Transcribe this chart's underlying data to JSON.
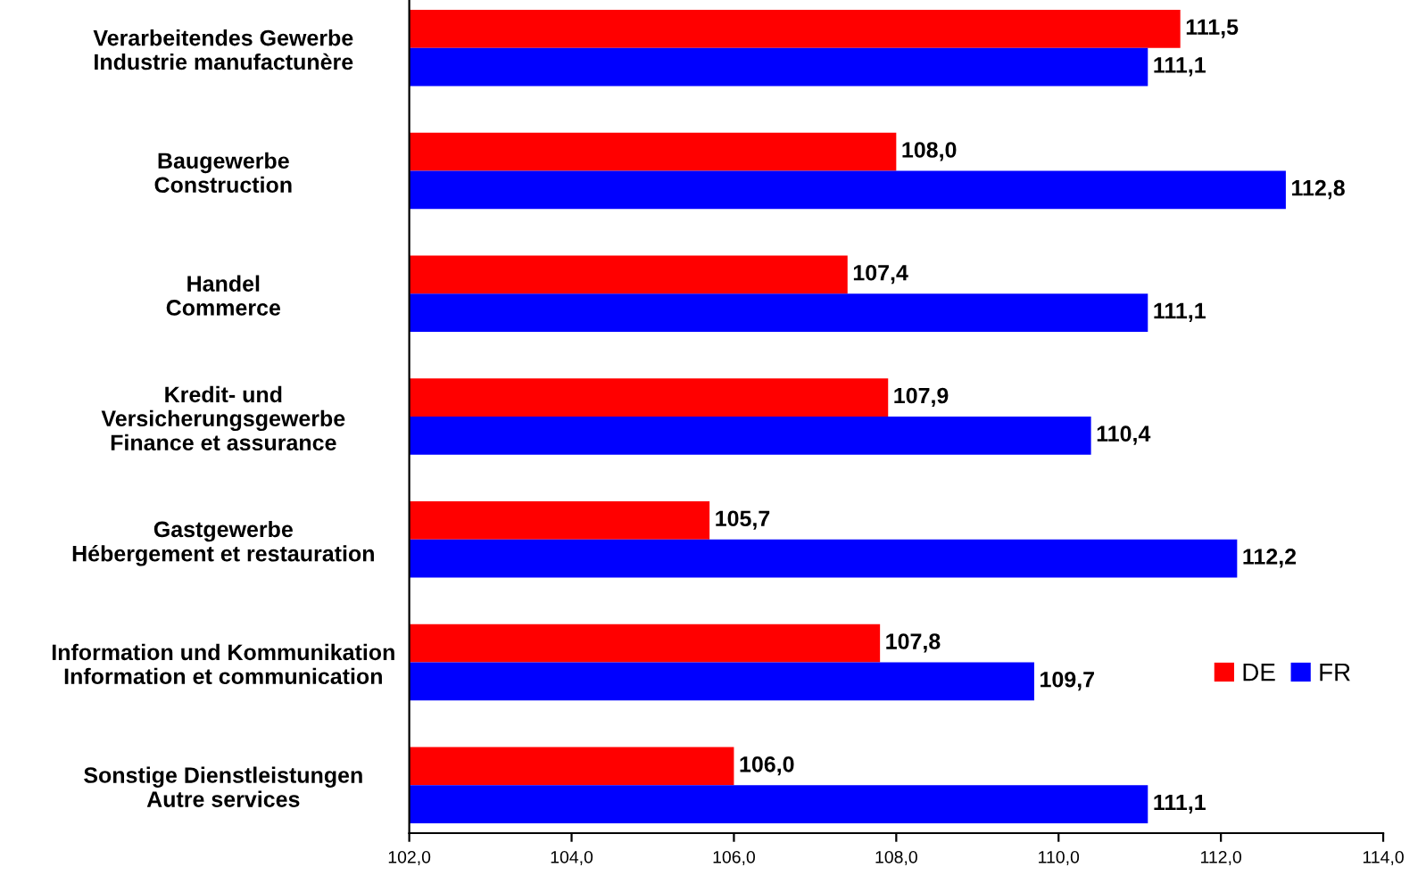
{
  "chart_data": {
    "type": "bar",
    "orientation": "horizontal",
    "categories": [
      "Verarbeitendes Gewerbe\nIndustrie manufactunère",
      "Baugewerbe\nConstruction",
      "Handel\nCommerce",
      "Kredit- und\nVersicherungsgewerbe\nFinance et assurance",
      "Gastgewerbe\nHébergement et restauration",
      "Information und Kommunikation\nInformation et communication",
      "Sonstige Dienstleistungen\nAutre services"
    ],
    "series": [
      {
        "name": "DE",
        "color": "#ff0000",
        "values": [
          111.5,
          108.0,
          107.4,
          107.9,
          105.7,
          107.8,
          106.0
        ],
        "value_labels": [
          "111,5",
          "108,0",
          "107,4",
          "107,9",
          "105,7",
          "107,8",
          "106,0"
        ]
      },
      {
        "name": "FR",
        "color": "#0000ff",
        "values": [
          111.1,
          112.8,
          111.1,
          110.4,
          112.2,
          109.7,
          111.1
        ],
        "value_labels": [
          "111,1",
          "112,8",
          "111,1",
          "110,4",
          "112,2",
          "109,7",
          "111,1"
        ]
      }
    ],
    "xlim": [
      102,
      114
    ],
    "xticks": [
      {
        "value": 102,
        "label": "102,0"
      },
      {
        "value": 104,
        "label": "104,0"
      },
      {
        "value": 106,
        "label": "106,0"
      },
      {
        "value": 108,
        "label": "108,0"
      },
      {
        "value": 110,
        "label": "110,0"
      },
      {
        "value": 112,
        "label": "112,0"
      },
      {
        "value": 114,
        "label": "114,0"
      }
    ],
    "grid": false,
    "legend": "bottom right"
  }
}
